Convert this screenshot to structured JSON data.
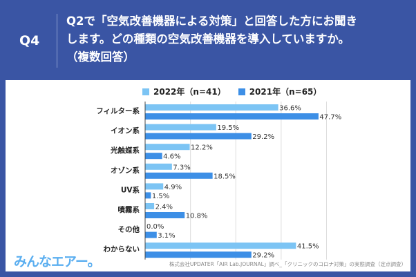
{
  "header": {
    "qnum": "Q4",
    "question_line1": "Q2で「空気改善機器による対策」と回答した方にお聞き",
    "question_line2": "します。どの種類の空気改善機器を導入していますか。",
    "question_line3": "（複数回答）"
  },
  "logo": "みんなエアー。",
  "source": "株式会社UPDATER「AIR Lab.JOURNAL」調べ_「クリニックのコロナ対策」の実態調査（定点調査）",
  "colors": {
    "background": "#3a55a4",
    "series_2022": "#7cc4f4",
    "series_2021": "#3d8fe6"
  },
  "chart_data": {
    "type": "bar",
    "orientation": "horizontal",
    "unit": "%",
    "categories": [
      "フィルター系",
      "イオン系",
      "光触媒系",
      "オゾン系",
      "UV系",
      "噴霧系",
      "その他",
      "わからない"
    ],
    "series": [
      {
        "name": "2022年（n=41）",
        "values": [
          36.6,
          19.5,
          12.2,
          7.3,
          4.9,
          2.4,
          0.0,
          41.5
        ]
      },
      {
        "name": "2021年（n=65）",
        "values": [
          47.7,
          29.2,
          4.6,
          18.5,
          1.5,
          10.8,
          3.1,
          29.2
        ]
      }
    ],
    "xlim": [
      0,
      50
    ],
    "grid": true,
    "legend": "top"
  }
}
